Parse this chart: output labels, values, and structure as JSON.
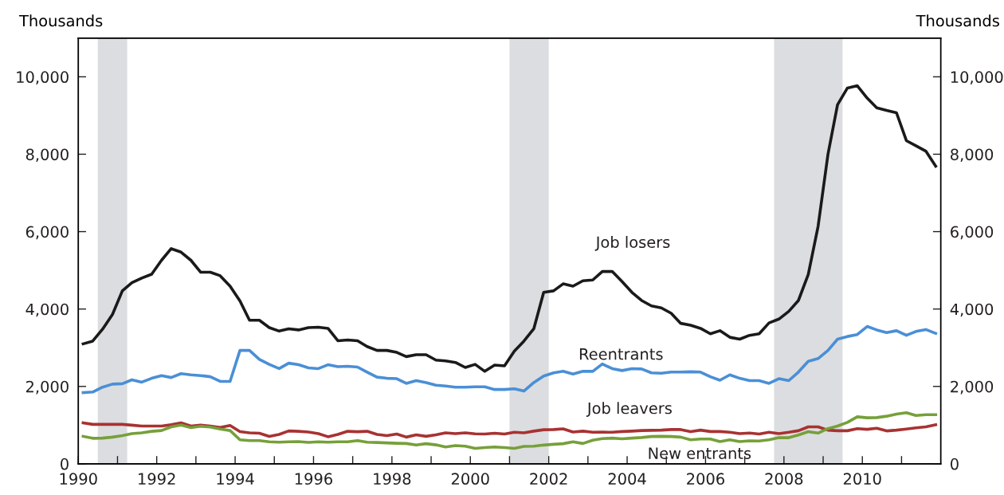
{
  "chart_data": {
    "type": "line",
    "ylabel": "Thousands",
    "y2label": "Thousands",
    "x": [
      "1990-02-15",
      "1990-05-15",
      "1990-08-15",
      "1990-11-15",
      "1991-02-15",
      "1991-05-15",
      "1991-08-15",
      "1991-11-15",
      "1992-02-15",
      "1992-05-15",
      "1992-08-15",
      "1992-11-15",
      "1993-02-15",
      "1993-05-15",
      "1993-08-15",
      "1993-11-15",
      "1994-02-15",
      "1994-05-15",
      "1994-08-15",
      "1994-11-15",
      "1995-02-15",
      "1995-05-15",
      "1995-08-15",
      "1995-11-15",
      "1996-02-15",
      "1996-05-15",
      "1996-08-15",
      "1996-11-15",
      "1997-02-15",
      "1997-05-15",
      "1997-08-15",
      "1997-11-15",
      "1998-02-15",
      "1998-05-15",
      "1998-08-15",
      "1998-11-15",
      "1999-02-15",
      "1999-05-15",
      "1999-08-15",
      "1999-11-15",
      "2000-02-15",
      "2000-05-15",
      "2000-08-15",
      "2000-11-15",
      "2001-02-15",
      "2001-05-15",
      "2001-08-15",
      "2001-11-15",
      "2002-02-15",
      "2002-05-15",
      "2002-08-15",
      "2002-11-15",
      "2003-02-15",
      "2003-05-15",
      "2003-08-15",
      "2003-11-15",
      "2004-02-15",
      "2004-05-15",
      "2004-08-15",
      "2004-11-15",
      "2005-02-15",
      "2005-05-15",
      "2005-08-15",
      "2005-11-15",
      "2006-02-15",
      "2006-05-15",
      "2006-08-15",
      "2006-11-15",
      "2007-02-15",
      "2007-05-15",
      "2007-08-15",
      "2007-11-15",
      "2008-02-15",
      "2008-05-15",
      "2008-08-15",
      "2008-11-15",
      "2009-02-15",
      "2009-05-15",
      "2009-08-15",
      "2009-11-15",
      "2010-02-15",
      "2010-05-15",
      "2010-08-15",
      "2010-11-15",
      "2011-02-15",
      "2011-05-15",
      "2011-08-15",
      "2011-11-15"
    ],
    "series": [
      {
        "name": "Job losers",
        "color": "#1a1a1a",
        "values": [
          3100,
          3170,
          3480,
          3860,
          4470,
          4680,
          4800,
          4900,
          5260,
          5560,
          5470,
          5260,
          4950,
          4950,
          4860,
          4590,
          4210,
          3710,
          3710,
          3520,
          3430,
          3490,
          3460,
          3520,
          3530,
          3500,
          3180,
          3200,
          3180,
          3030,
          2930,
          2930,
          2880,
          2770,
          2820,
          2820,
          2680,
          2660,
          2620,
          2490,
          2570,
          2390,
          2550,
          2530,
          2910,
          3170,
          3490,
          4430,
          4470,
          4650,
          4590,
          4730,
          4750,
          4970,
          4970,
          4710,
          4430,
          4220,
          4080,
          4030,
          3890,
          3630,
          3580,
          3500,
          3360,
          3440,
          3270,
          3220,
          3320,
          3360,
          3640,
          3740,
          3940,
          4220,
          4890,
          6140,
          8000,
          9280,
          9710,
          9770,
          9450,
          9200,
          9130,
          9070,
          8350,
          8220,
          8080,
          7690
        ]
      },
      {
        "name": "Reentrants",
        "color": "#4a8fd6",
        "values": [
          1840,
          1855,
          1980,
          2060,
          2070,
          2170,
          2110,
          2210,
          2280,
          2230,
          2330,
          2300,
          2280,
          2250,
          2130,
          2130,
          2930,
          2930,
          2700,
          2570,
          2460,
          2600,
          2560,
          2480,
          2460,
          2560,
          2510,
          2520,
          2500,
          2370,
          2240,
          2210,
          2200,
          2080,
          2150,
          2100,
          2030,
          2010,
          1980,
          1980,
          1990,
          1990,
          1920,
          1920,
          1940,
          1880,
          2100,
          2270,
          2350,
          2390,
          2320,
          2390,
          2390,
          2580,
          2460,
          2410,
          2460,
          2450,
          2350,
          2340,
          2370,
          2370,
          2380,
          2370,
          2250,
          2160,
          2300,
          2210,
          2150,
          2150,
          2080,
          2200,
          2150,
          2370,
          2650,
          2720,
          2930,
          3220,
          3290,
          3340,
          3550,
          3460,
          3390,
          3440,
          3320,
          3420,
          3470,
          3370
        ]
      },
      {
        "name": "Job leavers",
        "color": "#a83232",
        "values": [
          1060,
          1020,
          1020,
          1020,
          1020,
          1000,
          975,
          975,
          975,
          1010,
          1060,
          975,
          1000,
          975,
          940,
          990,
          830,
          800,
          790,
          710,
          760,
          850,
          840,
          820,
          780,
          700,
          760,
          840,
          830,
          840,
          760,
          730,
          770,
          690,
          750,
          710,
          750,
          800,
          780,
          800,
          775,
          770,
          790,
          770,
          815,
          800,
          845,
          880,
          885,
          905,
          820,
          845,
          815,
          820,
          815,
          835,
          845,
          860,
          865,
          870,
          885,
          885,
          830,
          870,
          835,
          835,
          815,
          780,
          795,
          770,
          815,
          780,
          815,
          855,
          955,
          955,
          870,
          855,
          855,
          910,
          890,
          920,
          850,
          870,
          900,
          930,
          955,
          1010
        ]
      },
      {
        "name": "New entrants",
        "color": "#76a03a",
        "values": [
          710,
          660,
          665,
          690,
          730,
          780,
          800,
          840,
          860,
          955,
          1000,
          935,
          970,
          950,
          900,
          860,
          620,
          600,
          600,
          570,
          560,
          570,
          575,
          555,
          570,
          560,
          570,
          570,
          600,
          560,
          550,
          540,
          530,
          525,
          485,
          520,
          490,
          435,
          470,
          455,
          400,
          420,
          435,
          420,
          400,
          450,
          455,
          485,
          505,
          520,
          570,
          525,
          610,
          650,
          665,
          645,
          665,
          680,
          705,
          710,
          705,
          690,
          620,
          640,
          640,
          575,
          620,
          575,
          595,
          590,
          620,
          675,
          675,
          745,
          830,
          795,
          910,
          975,
          1070,
          1215,
          1190,
          1195,
          1230,
          1285,
          1320,
          1250,
          1270,
          1270
        ]
      }
    ],
    "xlim": [
      "1990",
      "2012"
    ],
    "xticks": [
      {
        "value": "1990",
        "label": "1990"
      },
      {
        "value": "1991",
        "label": null
      },
      {
        "value": "1992",
        "label": "1992"
      },
      {
        "value": "1993",
        "label": null
      },
      {
        "value": "1994",
        "label": "1994"
      },
      {
        "value": "1995",
        "label": null
      },
      {
        "value": "1996",
        "label": "1996"
      },
      {
        "value": "1997",
        "label": null
      },
      {
        "value": "1998",
        "label": "1998"
      },
      {
        "value": "1999",
        "label": null
      },
      {
        "value": "2000",
        "label": "2000"
      },
      {
        "value": "2001",
        "label": null
      },
      {
        "value": "2002",
        "label": "2002"
      },
      {
        "value": "2003",
        "label": null
      },
      {
        "value": "2004",
        "label": "2004"
      },
      {
        "value": "2005",
        "label": null
      },
      {
        "value": "2006",
        "label": "2006"
      },
      {
        "value": "2007",
        "label": null
      },
      {
        "value": "2008",
        "label": "2008"
      },
      {
        "value": "2009",
        "label": null
      },
      {
        "value": "2010",
        "label": "2010"
      },
      {
        "value": "2011",
        "label": null
      }
    ],
    "ylim": [
      0,
      11000
    ],
    "yticks": [
      0,
      {
        "value": 2000,
        "label": "2,000"
      },
      {
        "value": 4000,
        "label": "4,000"
      },
      {
        "value": 6000,
        "label": "6,000"
      },
      {
        "value": 8000,
        "label": "8,000"
      },
      {
        "value": 10000,
        "label": "10,000"
      }
    ],
    "y2lim": [
      0,
      11000
    ],
    "y2ticks": [
      0,
      {
        "value": 2000,
        "label": "2,000"
      },
      {
        "value": 4000,
        "label": "4,000"
      },
      {
        "value": 6000,
        "label": "6,000"
      },
      {
        "value": 8000,
        "label": "8,000"
      },
      {
        "value": 10000,
        "label": "10,000"
      }
    ],
    "bands": [
      {
        "axis": "x",
        "from": "1990-07",
        "to": "1991-04",
        "color": "#dcdde0"
      },
      {
        "axis": "x",
        "from": "2001-01",
        "to": "2002-01",
        "color": "#dcdde0"
      },
      {
        "axis": "x",
        "from": "2007-10",
        "to": "2009-07",
        "color": "#dcdde0"
      }
    ],
    "grid": false,
    "legend": false,
    "line_style": "solid",
    "marker": "none"
  }
}
